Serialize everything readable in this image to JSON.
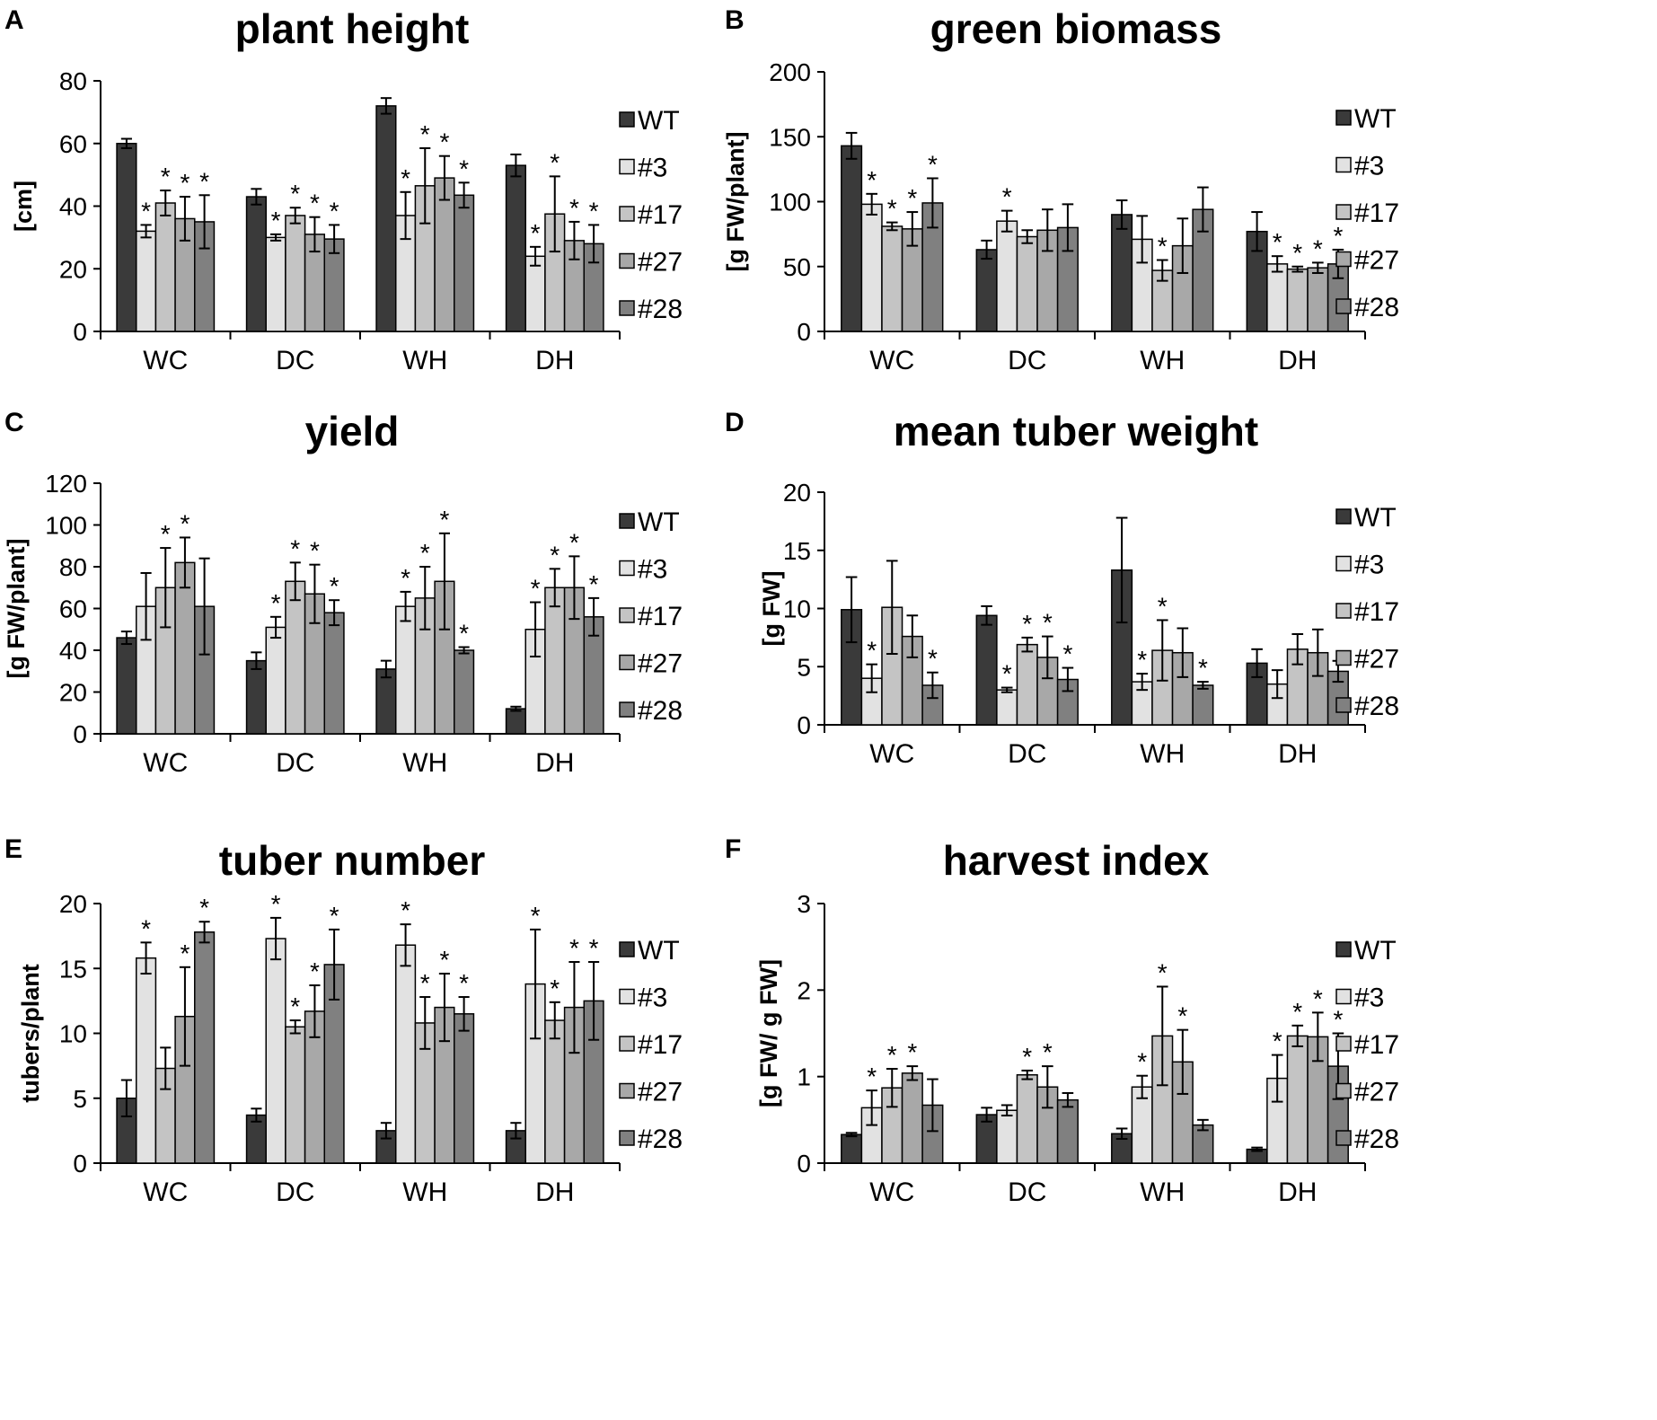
{
  "legend": [
    "WT",
    "#3",
    "#17",
    "#27",
    "#28"
  ],
  "colors": [
    "#3a3a3a",
    "#e2e2e2",
    "#c4c4c4",
    "#a8a8a8",
    "#808080"
  ],
  "chart_data": [
    {
      "id": "A",
      "type": "bar",
      "title": "plant height",
      "ylabel": "[cm]",
      "ylim": [
        0,
        80
      ],
      "yticks": [
        0,
        20,
        40,
        60,
        80
      ],
      "categories": [
        "WC",
        "DC",
        "WH",
        "DH"
      ],
      "series": [
        {
          "name": "WT",
          "values": [
            60,
            43,
            72,
            53
          ],
          "errors": [
            1.5,
            2.5,
            2.5,
            3.5
          ],
          "sig": [
            false,
            false,
            false,
            false
          ]
        },
        {
          "name": "#3",
          "values": [
            32,
            30,
            37,
            24
          ],
          "errors": [
            2,
            1,
            7.5,
            3
          ],
          "sig": [
            true,
            true,
            true,
            true
          ]
        },
        {
          "name": "#17",
          "values": [
            41,
            37,
            46.5,
            37.5
          ],
          "errors": [
            4,
            2.5,
            12,
            12
          ],
          "sig": [
            true,
            true,
            true,
            true
          ]
        },
        {
          "name": "#27",
          "values": [
            36,
            31,
            49,
            29
          ],
          "errors": [
            7,
            5.5,
            7,
            6
          ],
          "sig": [
            true,
            true,
            true,
            true
          ]
        },
        {
          "name": "#28",
          "values": [
            35,
            29.5,
            43.5,
            28
          ],
          "errors": [
            8.5,
            4.5,
            4,
            6
          ],
          "sig": [
            true,
            true,
            true,
            true
          ]
        }
      ]
    },
    {
      "id": "B",
      "type": "bar",
      "title": "green biomass",
      "ylabel": "[g FW/plant]",
      "ylim": [
        0,
        200
      ],
      "yticks": [
        0,
        50,
        100,
        150,
        200
      ],
      "categories": [
        "WC",
        "DC",
        "WH",
        "DH"
      ],
      "series": [
        {
          "name": "WT",
          "values": [
            143,
            63,
            90,
            77
          ],
          "errors": [
            10,
            7,
            11,
            15
          ],
          "sig": [
            false,
            false,
            false,
            false
          ]
        },
        {
          "name": "#3",
          "values": [
            98,
            85,
            71,
            52
          ],
          "errors": [
            8,
            8,
            18,
            6
          ],
          "sig": [
            true,
            true,
            false,
            true
          ]
        },
        {
          "name": "#17",
          "values": [
            81,
            73,
            47,
            48
          ],
          "errors": [
            3,
            5,
            8,
            2
          ],
          "sig": [
            true,
            false,
            true,
            true
          ]
        },
        {
          "name": "#27",
          "values": [
            79,
            78,
            66,
            49
          ],
          "errors": [
            13,
            16,
            21,
            4
          ],
          "sig": [
            true,
            false,
            false,
            true
          ]
        },
        {
          "name": "#28",
          "values": [
            99,
            80,
            94,
            52
          ],
          "errors": [
            19,
            18,
            17,
            11
          ],
          "sig": [
            true,
            false,
            false,
            true
          ]
        }
      ]
    },
    {
      "id": "C",
      "type": "bar",
      "title": "yield",
      "ylabel": "[g FW/plant]",
      "ylim": [
        0,
        120
      ],
      "yticks": [
        0,
        20,
        40,
        60,
        80,
        100,
        120
      ],
      "categories": [
        "WC",
        "DC",
        "WH",
        "DH"
      ],
      "series": [
        {
          "name": "WT",
          "values": [
            46,
            35,
            31,
            12
          ],
          "errors": [
            3,
            4,
            4,
            1
          ],
          "sig": [
            false,
            false,
            false,
            false
          ]
        },
        {
          "name": "#3",
          "values": [
            61,
            51,
            61,
            50
          ],
          "errors": [
            16,
            5,
            7,
            13
          ],
          "sig": [
            false,
            true,
            true,
            true
          ]
        },
        {
          "name": "#17",
          "values": [
            70,
            73,
            65,
            70
          ],
          "errors": [
            19,
            9,
            15,
            9
          ],
          "sig": [
            true,
            true,
            true,
            true
          ]
        },
        {
          "name": "#27",
          "values": [
            82,
            67,
            73,
            70
          ],
          "errors": [
            12,
            14,
            23,
            15
          ],
          "sig": [
            true,
            true,
            true,
            true
          ]
        },
        {
          "name": "#28",
          "values": [
            61,
            58,
            40,
            56
          ],
          "errors": [
            23,
            6,
            1.5,
            9
          ],
          "sig": [
            false,
            true,
            true,
            true
          ]
        }
      ]
    },
    {
      "id": "D",
      "type": "bar",
      "title": "mean tuber weight",
      "ylabel": "[g FW]",
      "ylim": [
        0,
        20
      ],
      "yticks": [
        0,
        5,
        10,
        15,
        20
      ],
      "categories": [
        "WC",
        "DC",
        "WH",
        "DH"
      ],
      "series": [
        {
          "name": "WT",
          "values": [
            9.9,
            9.4,
            13.3,
            5.3
          ],
          "errors": [
            2.8,
            0.8,
            4.5,
            1.2
          ],
          "sig": [
            false,
            false,
            false,
            false
          ]
        },
        {
          "name": "#3",
          "values": [
            4.0,
            3.0,
            3.7,
            3.5
          ],
          "errors": [
            1.2,
            0.2,
            0.7,
            1.2
          ],
          "sig": [
            true,
            true,
            true,
            false
          ]
        },
        {
          "name": "#17",
          "values": [
            10.1,
            6.9,
            6.4,
            6.5
          ],
          "errors": [
            4.0,
            0.6,
            2.6,
            1.3
          ],
          "sig": [
            false,
            true,
            true,
            false
          ]
        },
        {
          "name": "#27",
          "values": [
            7.6,
            5.8,
            6.2,
            6.2
          ],
          "errors": [
            1.8,
            1.8,
            2.1,
            2.0
          ],
          "sig": [
            false,
            true,
            false,
            false
          ]
        },
        {
          "name": "#28",
          "values": [
            3.4,
            3.9,
            3.4,
            4.6
          ],
          "errors": [
            1.1,
            1.0,
            0.3,
            0.9
          ],
          "sig": [
            true,
            true,
            true,
            false
          ]
        }
      ]
    },
    {
      "id": "E",
      "type": "bar",
      "title": "tuber number",
      "ylabel": "tubers/plant",
      "ylim": [
        0,
        20
      ],
      "yticks": [
        0,
        5,
        10,
        15,
        20
      ],
      "categories": [
        "WC",
        "DC",
        "WH",
        "DH"
      ],
      "series": [
        {
          "name": "WT",
          "values": [
            5.0,
            3.7,
            2.5,
            2.5
          ],
          "errors": [
            1.4,
            0.5,
            0.6,
            0.6
          ],
          "sig": [
            false,
            false,
            false,
            false
          ]
        },
        {
          "name": "#3",
          "values": [
            15.8,
            17.3,
            16.8,
            13.8
          ],
          "errors": [
            1.2,
            1.6,
            1.6,
            4.2
          ],
          "sig": [
            true,
            true,
            true,
            true
          ]
        },
        {
          "name": "#17",
          "values": [
            7.3,
            10.5,
            10.8,
            11.0
          ],
          "errors": [
            1.6,
            0.5,
            2.0,
            1.4
          ],
          "sig": [
            false,
            true,
            true,
            true
          ]
        },
        {
          "name": "#27",
          "values": [
            11.3,
            11.7,
            12.0,
            12.0
          ],
          "errors": [
            3.8,
            2.0,
            2.6,
            3.5
          ],
          "sig": [
            true,
            true,
            true,
            true
          ]
        },
        {
          "name": "#28",
          "values": [
            17.8,
            15.3,
            11.5,
            12.5
          ],
          "errors": [
            0.8,
            2.7,
            1.3,
            3.0
          ],
          "sig": [
            true,
            true,
            true,
            true
          ]
        }
      ]
    },
    {
      "id": "F",
      "type": "bar",
      "title": "harvest index",
      "ylabel": "[g FW/ g FW]",
      "ylim": [
        0,
        3
      ],
      "yticks": [
        0,
        1,
        2,
        3
      ],
      "categories": [
        "WC",
        "DC",
        "WH",
        "DH"
      ],
      "series": [
        {
          "name": "WT",
          "values": [
            0.33,
            0.56,
            0.34,
            0.16
          ],
          "errors": [
            0.02,
            0.08,
            0.06,
            0.02
          ],
          "sig": [
            false,
            false,
            false,
            false
          ]
        },
        {
          "name": "#3",
          "values": [
            0.64,
            0.61,
            0.88,
            0.98
          ],
          "errors": [
            0.2,
            0.06,
            0.13,
            0.27
          ],
          "sig": [
            true,
            false,
            true,
            true
          ]
        },
        {
          "name": "#17",
          "values": [
            0.87,
            1.02,
            1.47,
            1.47
          ],
          "errors": [
            0.22,
            0.05,
            0.57,
            0.12
          ],
          "sig": [
            true,
            true,
            true,
            true
          ]
        },
        {
          "name": "#27",
          "values": [
            1.04,
            0.88,
            1.17,
            1.46
          ],
          "errors": [
            0.08,
            0.24,
            0.37,
            0.28
          ],
          "sig": [
            true,
            true,
            true,
            true
          ]
        },
        {
          "name": "#28",
          "values": [
            0.67,
            0.73,
            0.44,
            1.12
          ],
          "errors": [
            0.3,
            0.08,
            0.06,
            0.38
          ],
          "sig": [
            false,
            false,
            false,
            true
          ]
        }
      ]
    }
  ]
}
